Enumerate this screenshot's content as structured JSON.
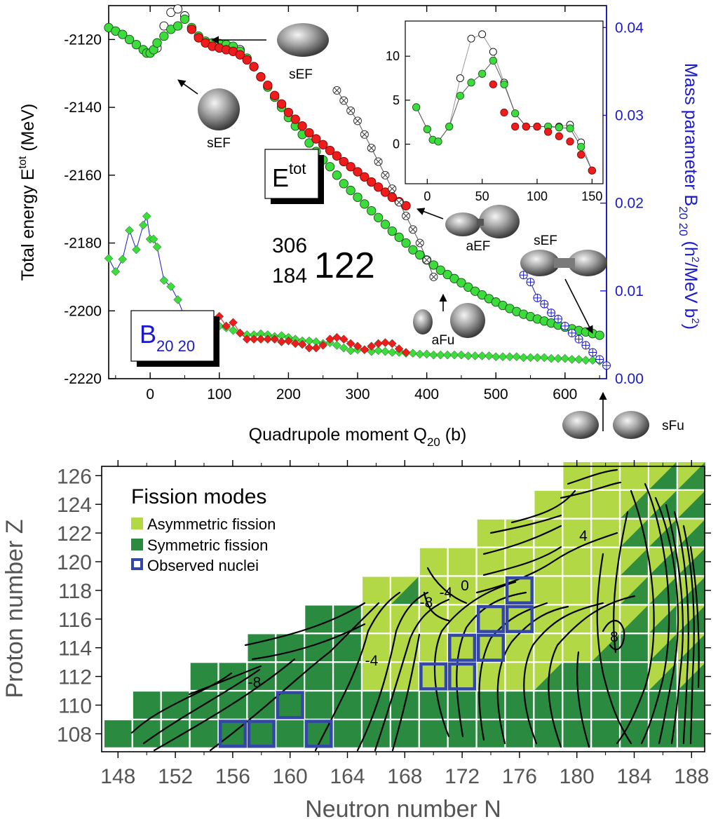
{
  "colors": {
    "green": "#3ddc3d",
    "red": "#ee1c1c",
    "blue": "#1a1acc",
    "asym": "#b2d845",
    "sym": "#2a8a3f",
    "observed": "#3348a6",
    "open": "#ffffff",
    "gray": "#888888"
  },
  "top": {
    "xlabel": "Quadrupole moment Q",
    "xlabel_sub": "20",
    "xlabel_unit": " (b)",
    "ylabel": "Total energy E",
    "ylabel_sup": "tot",
    "ylabel_unit": " (MeV)",
    "y2label": "Mass parameter B",
    "y2label_sub": "20 20",
    "y2label_unit": " (h",
    "y2label_unit2": "/MeV b",
    "y2label_end": ")",
    "nucleus_mass": "306",
    "nucleus_n": "184",
    "nucleus_z": "122",
    "etot_box": "E",
    "etot_box_sup": "tot",
    "b_box": "B",
    "b_box_sub": "20 20",
    "shape_labels": [
      "sEF",
      "sEF",
      "aEF",
      "sEF",
      "aFu",
      "sFu"
    ]
  },
  "bottom": {
    "title": "Fission modes",
    "legend": [
      "Asymmetric fission",
      "Symmetric fission",
      "Observed nuclei"
    ],
    "xlabel": "Neutron number N",
    "ylabel": "Proton number Z",
    "contour_labels": [
      "-8",
      "-4",
      "0",
      "-8",
      "-4",
      "4",
      "8"
    ]
  },
  "chart_data": [
    {
      "type": "scatter",
      "xlabel": "Quadrupole moment Q20 (b)",
      "ylabel": "Total energy Etot (MeV)",
      "y2label": "Mass parameter B20 20 (h2/MeV b2)",
      "xlim": [
        -60,
        660
      ],
      "ylim": [
        -2220,
        -2110
      ],
      "y2lim": [
        0,
        0.0425
      ],
      "xticks": [
        "0",
        "100",
        "200",
        "300",
        "400",
        "500",
        "600"
      ],
      "yticks": [
        "-2120",
        "-2140",
        "-2160",
        "-2180",
        "-2200",
        "-2220"
      ],
      "y2ticks": [
        "0.00",
        "0.01",
        "0.02",
        "0.03",
        "0.04"
      ],
      "series": [
        {
          "role": "energy-open",
          "x": [
            -60,
            -50,
            -40,
            -30,
            -20,
            -10,
            0,
            10,
            20,
            30,
            40,
            50,
            60,
            70,
            80,
            90,
            100,
            110,
            120,
            130,
            140
          ],
          "y": [
            -2116.5,
            -2117.5,
            -2118.5,
            -2120,
            -2121.5,
            -2123,
            -2124,
            -2122.5,
            -2116,
            -2112,
            -2111,
            -2113,
            -2117,
            -2119,
            -2120.5,
            -2121,
            -2121.5,
            -2121.8,
            -2122,
            -2123,
            -2125.5
          ]
        },
        {
          "role": "energy-green",
          "x": [
            -60,
            -50,
            -40,
            -30,
            -20,
            -10,
            -5,
            0,
            5,
            10,
            20,
            30,
            40,
            50,
            60,
            70,
            80,
            90,
            100,
            110,
            120,
            130,
            140,
            150,
            160,
            170,
            180,
            190,
            200,
            210,
            220,
            230,
            240,
            250,
            260,
            270,
            280,
            290,
            300,
            310,
            320,
            330,
            340,
            350,
            360,
            370,
            380,
            390,
            400,
            410,
            420,
            430,
            440,
            450,
            460,
            470,
            480,
            490,
            500,
            510,
            520,
            530,
            540,
            550,
            560,
            570,
            580,
            590,
            600,
            610,
            620,
            630,
            640,
            650
          ],
          "y": [
            -2116.5,
            -2117.5,
            -2118.5,
            -2120,
            -2121.5,
            -2123,
            -2124,
            -2124,
            -2123,
            -2121,
            -2119,
            -2117,
            -2116,
            -2114,
            -2116.5,
            -2119,
            -2120.5,
            -2121,
            -2121.2,
            -2121.5,
            -2122,
            -2123.5,
            -2125.5,
            -2128,
            -2131,
            -2134,
            -2137,
            -2140,
            -2143,
            -2145.5,
            -2148,
            -2150.5,
            -2153,
            -2155.5,
            -2157.5,
            -2160,
            -2162.5,
            -2164.5,
            -2166.5,
            -2168.5,
            -2170.5,
            -2172.5,
            -2174.5,
            -2176.5,
            -2178.3,
            -2180,
            -2182,
            -2183.5,
            -2185,
            -2186.5,
            -2188,
            -2189.3,
            -2190.5,
            -2191.7,
            -2193,
            -2194.2,
            -2195.3,
            -2196.4,
            -2197.4,
            -2198.4,
            -2199.3,
            -2200.2,
            -2201,
            -2201.7,
            -2202.4,
            -2203,
            -2203.6,
            -2204.2,
            -2204.8,
            -2205.3,
            -2205.8,
            -2206.2,
            -2206.7,
            -2207.2
          ]
        },
        {
          "role": "energy-red",
          "x": [
            60,
            70,
            80,
            90,
            100,
            110,
            120,
            130,
            140,
            150,
            160,
            170,
            180,
            190,
            200,
            210,
            220,
            230,
            240,
            250,
            260,
            270,
            280,
            290,
            300,
            310,
            320,
            330,
            340,
            350,
            360,
            370
          ],
          "y": [
            -2117,
            -2119.5,
            -2121,
            -2122,
            -2122.5,
            -2123,
            -2123.5,
            -2124.5,
            -2126,
            -2128,
            -2131,
            -2133.5,
            -2136.5,
            -2139,
            -2141.5,
            -2143.5,
            -2145.5,
            -2147.5,
            -2149.3,
            -2151,
            -2152.7,
            -2154.3,
            -2156,
            -2157.5,
            -2159,
            -2160.5,
            -2162,
            -2163.5,
            -2165,
            -2166.5,
            -2167.8,
            -2169
          ]
        },
        {
          "role": "energy-aFu",
          "x": [
            270,
            280,
            290,
            300,
            310,
            320,
            330,
            340,
            350,
            360,
            370,
            380,
            390,
            400,
            410
          ],
          "y": [
            -2135,
            -2138,
            -2141,
            -2144,
            -2148,
            -2152,
            -2156,
            -2160,
            -2164,
            -2168,
            -2172,
            -2176,
            -2180,
            -2185,
            -2190
          ]
        },
        {
          "role": "mass-blue",
          "x": [
            -60,
            -50,
            -40,
            -30,
            -20,
            -10,
            -5,
            0,
            5,
            10,
            20,
            30,
            40,
            50
          ],
          "y": [
            0.0137,
            0.0122,
            0.0136,
            0.0169,
            0.0147,
            0.0175,
            0.0185,
            0.0159,
            0.0159,
            0.015,
            0.0112,
            0.0105,
            0.009,
            0.007
          ]
        },
        {
          "role": "mass-green",
          "x": [
            -60,
            -50,
            -40,
            -30,
            -20,
            -10,
            -5,
            0,
            5,
            10,
            20,
            30,
            40,
            50,
            60,
            70,
            80,
            90,
            100,
            110,
            120,
            130,
            140,
            150,
            160,
            170,
            180,
            190,
            200,
            210,
            220,
            230,
            240,
            250,
            260,
            270,
            280,
            290,
            300,
            310,
            320,
            330,
            340,
            350,
            360,
            370,
            380,
            390,
            400,
            410,
            420,
            430,
            440,
            450,
            460,
            470,
            480,
            490,
            500,
            510,
            520,
            530,
            540,
            550,
            560,
            570,
            580,
            590,
            600,
            610,
            620,
            630,
            640,
            650
          ],
          "y": [
            0.0137,
            0.0122,
            0.0136,
            0.0169,
            0.0147,
            0.0175,
            0.0185,
            0.0159,
            0.0159,
            0.015,
            0.0112,
            0.0105,
            0.009,
            0.007,
            0.0068,
            0.0064,
            0.0062,
            0.0061,
            0.006,
            0.0058,
            0.0055,
            0.0052,
            0.005,
            0.005,
            0.0051,
            0.005,
            0.0048,
            0.0049,
            0.0047,
            0.0045,
            0.0043,
            0.0043,
            0.0042,
            0.004,
            0.0041,
            0.0038,
            0.0035,
            0.0032,
            0.0033,
            0.0033,
            0.0031,
            0.0032,
            0.0031,
            0.003,
            0.003,
            0.0029,
            0.0029,
            0.0028,
            0.0028,
            0.0027,
            0.0027,
            0.0027,
            0.0027,
            0.0027,
            0.0026,
            0.0026,
            0.0026,
            0.0026,
            0.0025,
            0.0025,
            0.0025,
            0.0025,
            0.0024,
            0.0024,
            0.0024,
            0.0024,
            0.0023,
            0.0023,
            0.0023,
            0.0022,
            0.0022,
            0.0021,
            0.0021,
            0.002
          ]
        },
        {
          "role": "mass-red",
          "x": [
            60,
            70,
            80,
            90,
            100,
            110,
            120,
            130,
            140,
            150,
            160,
            170,
            180,
            190,
            200,
            210,
            220,
            230,
            240,
            250,
            260,
            270,
            280,
            290,
            300,
            310,
            320,
            330,
            340,
            350,
            360,
            370
          ],
          "y": [
            0.0067,
            0.0066,
            0.0066,
            0.0066,
            0.0071,
            0.006,
            0.0064,
            0.0052,
            0.0045,
            0.0045,
            0.0045,
            0.0045,
            0.0045,
            0.0042,
            0.0043,
            0.004,
            0.0039,
            0.0035,
            0.0035,
            0.0038,
            0.0045,
            0.0047,
            0.0045,
            0.004,
            0.0037,
            0.0033,
            0.0037,
            0.004,
            0.0041,
            0.004,
            0.0034,
            0.003
          ]
        },
        {
          "role": "mass-aFu",
          "x": [
            540,
            550,
            560,
            570,
            580,
            590,
            600,
            610,
            620,
            630,
            640,
            650,
            660
          ],
          "y": [
            0.0118,
            0.011,
            0.0092,
            0.0085,
            0.0075,
            0.0068,
            0.006,
            0.0052,
            0.0045,
            0.0038,
            0.003,
            0.0022,
            0.0015
          ]
        }
      ]
    },
    {
      "type": "scatter",
      "role": "inset",
      "xlim": [
        -20,
        160
      ],
      "ylim": [
        -4.5,
        14
      ],
      "xticks": [
        "0",
        "50",
        "100",
        "150"
      ],
      "yticks": [
        "0",
        "5",
        "10"
      ],
      "series": [
        {
          "role": "open",
          "x": [
            -10,
            0,
            5,
            10,
            20,
            30,
            40,
            50,
            60,
            70,
            80,
            90,
            100,
            110,
            120,
            130,
            140,
            150
          ],
          "y": [
            4.2,
            1.7,
            0.5,
            0.3,
            2,
            7.5,
            12,
            12.5,
            10.5,
            7,
            3.5,
            2,
            2,
            2,
            2,
            2.2,
            0.2,
            -3
          ]
        },
        {
          "role": "green",
          "x": [
            -10,
            0,
            5,
            10,
            20,
            30,
            40,
            50,
            60,
            70,
            80,
            90,
            100,
            110,
            120,
            130,
            140,
            150
          ],
          "y": [
            4.2,
            1.7,
            0.5,
            0.3,
            2,
            5.5,
            7,
            8,
            9.5,
            6.8,
            3.5,
            2,
            2,
            2,
            1.9,
            1.8,
            -0.3,
            -3
          ]
        },
        {
          "role": "red",
          "x": [
            60,
            70,
            80,
            90,
            100,
            110,
            120,
            130,
            140,
            150
          ],
          "y": [
            6.8,
            3.6,
            2,
            2,
            2,
            1.4,
            0.9,
            0.3,
            -1.2,
            -3
          ]
        }
      ]
    },
    {
      "type": "heatmap",
      "xlabel": "Neutron number N",
      "ylabel": "Proton number Z",
      "x_ticks": [
        "148",
        "152",
        "156",
        "160",
        "164",
        "168",
        "172",
        "176",
        "180",
        "184",
        "188"
      ],
      "y_ticks": [
        "108",
        "110",
        "112",
        "114",
        "116",
        "118",
        "120",
        "122",
        "124",
        "126"
      ],
      "rows": [
        {
          "Z": 108,
          "N_from": 148,
          "N_to": 188,
          "asym": []
        },
        {
          "Z": 110,
          "N_from": 150,
          "N_to": 188,
          "asym": []
        },
        {
          "Z": 112,
          "N_from": 154,
          "N_to": 188,
          "asym": [
            166,
            168,
            170,
            172,
            174,
            176,
            178
          ]
        },
        {
          "Z": 114,
          "N_from": 158,
          "N_to": 188,
          "asym": [
            166,
            168,
            170,
            172,
            174,
            176,
            178,
            180,
            182
          ]
        },
        {
          "Z": 116,
          "N_from": 162,
          "N_to": 188,
          "asym": [
            166,
            168,
            170,
            172,
            174,
            176,
            178,
            180,
            182,
            184
          ]
        },
        {
          "Z": 118,
          "N_from": 166,
          "N_to": 188,
          "asym": [
            166,
            168,
            170,
            172,
            174,
            176,
            178,
            180,
            182,
            184
          ]
        },
        {
          "Z": 120,
          "N_from": 170,
          "N_to": 188,
          "asym": [
            170,
            172,
            174,
            176,
            178,
            180,
            182,
            184
          ]
        },
        {
          "Z": 122,
          "N_from": 174,
          "N_to": 188,
          "asym": [
            174,
            176,
            178,
            180,
            182,
            184
          ]
        },
        {
          "Z": 124,
          "N_from": 178,
          "N_to": 188,
          "asym": [
            178,
            180,
            182,
            184
          ]
        },
        {
          "Z": 126,
          "N_from": 180,
          "N_to": 188,
          "asym": [
            180,
            182,
            184,
            188
          ]
        }
      ],
      "observed": [
        [
          156,
          108
        ],
        [
          158,
          108
        ],
        [
          162,
          108
        ],
        [
          160,
          110
        ],
        [
          170,
          112
        ],
        [
          172,
          112
        ],
        [
          172,
          114
        ],
        [
          174,
          114
        ],
        [
          174,
          116
        ],
        [
          176,
          116
        ],
        [
          176,
          118
        ]
      ]
    }
  ]
}
